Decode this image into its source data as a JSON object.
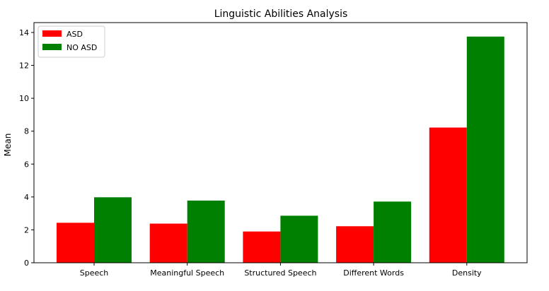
{
  "chart_data": {
    "type": "bar",
    "title": "Linguistic Abilities Analysis",
    "xlabel": "",
    "ylabel": "Mean",
    "categories": [
      "Speech",
      "Meaningful Speech",
      "Structured Speech",
      "Different Words",
      "Density"
    ],
    "series": [
      {
        "name": "ASD",
        "color": "#ff0000",
        "values": [
          2.43,
          2.38,
          1.9,
          2.22,
          8.22
        ]
      },
      {
        "name": "NO ASD",
        "color": "#008000",
        "values": [
          3.98,
          3.78,
          2.86,
          3.72,
          13.75
        ]
      }
    ],
    "ylim": [
      0,
      14.6
    ],
    "yticks": [
      0,
      2,
      4,
      6,
      8,
      10,
      12,
      14
    ],
    "grid": false,
    "legend_position": "top-left"
  }
}
